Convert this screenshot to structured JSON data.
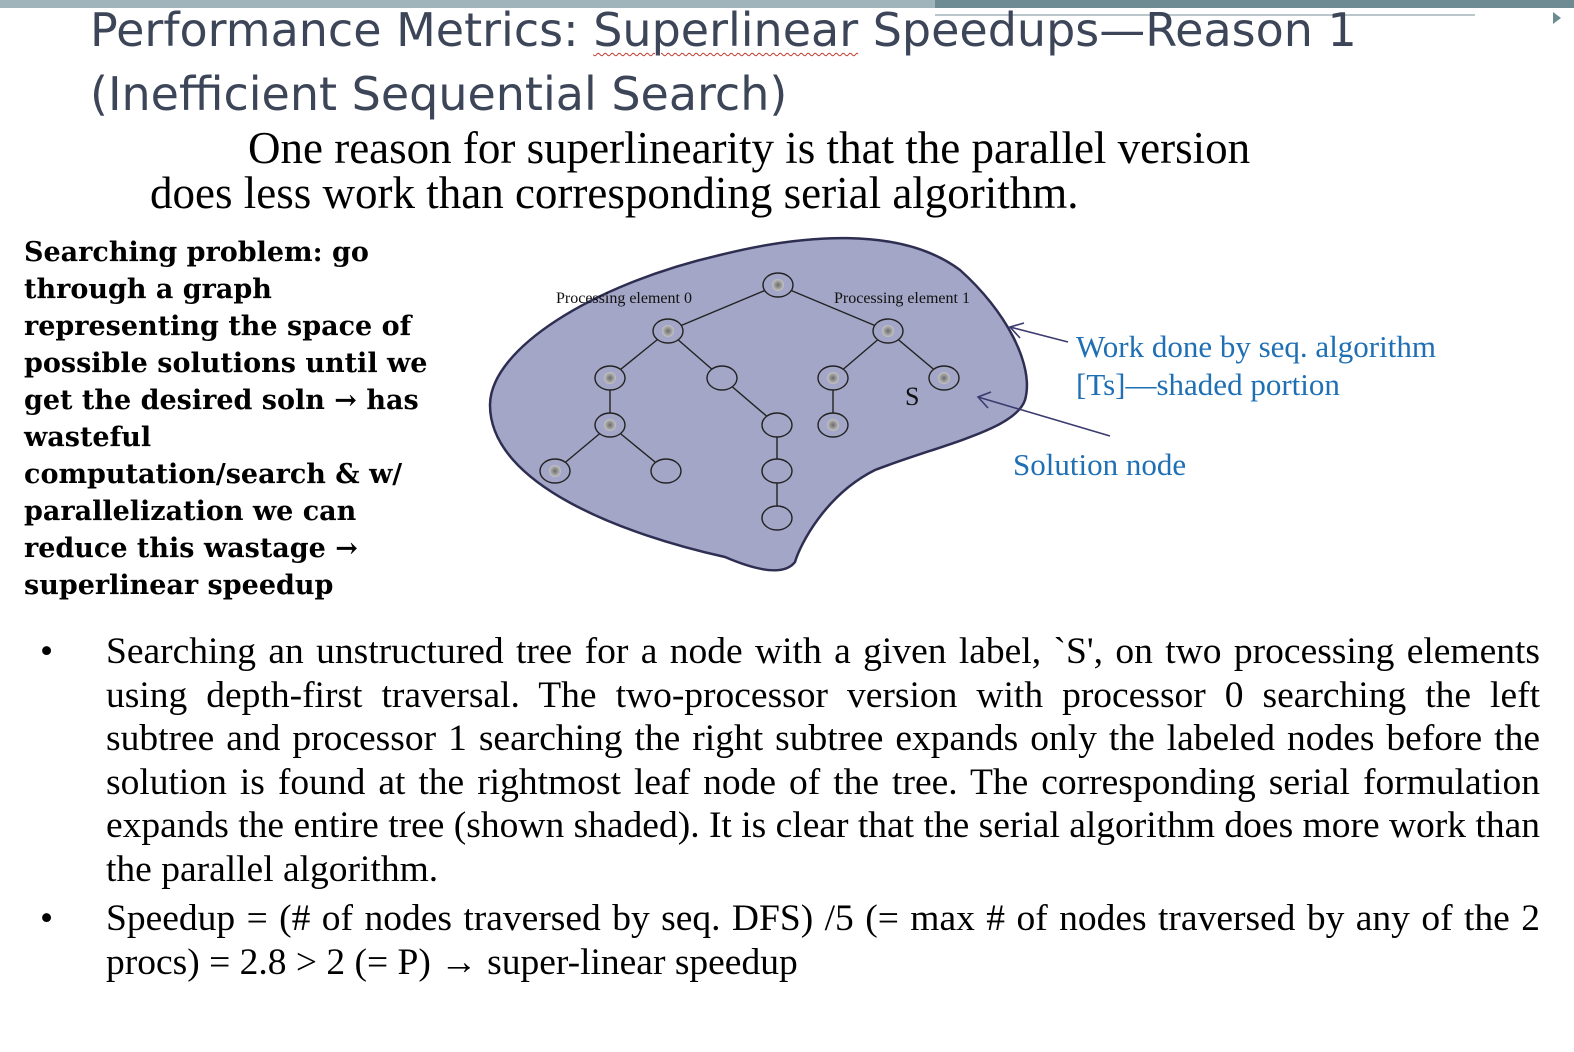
{
  "slide": {
    "title_line1_pre": "Performance Metrics: ",
    "title_line1_sq": "Superlinear",
    "title_line1_post": " Speedups—Reason 1",
    "title_line2": "(Inefficient Sequential Search)",
    "intro_line1": "One reason for superlinearity is that the parallel version",
    "intro_line2": "does less work than corresponding serial algorithm.",
    "sidebar_text": "Searching problem: go\nthrough a graph\nrepresenting the space of\npossible solutions until we\nget the desired soln → has\nwasteful\ncomputation/search & w/\nparallelization we can\nreduce this wastage →\nsuperlinear speedup"
  },
  "diagram": {
    "pe0_label": "Processing element 0",
    "pe1_label": "Processing element 1",
    "solution_label": "S",
    "callout_work_line1": "Work done by seq.  algorithm",
    "callout_work_line2": "[Ts]—shaded portion",
    "callout_solution": "Solution node",
    "colors": {
      "region_fill": "#a3a6c6",
      "region_stroke": "#2e2e52",
      "callout": "#1f6fb5",
      "shaded_node": "#9a9a9a"
    }
  },
  "bullets": [
    {
      "marker": "•",
      "text": "Searching an unstructured tree for a node with a given label, `S', on two processing elements using depth-first traversal. The two-processor version with processor 0 searching the left subtree and processor 1 searching the right subtree expands only the labeled nodes before the solution is found at the rightmost leaf node of the tree. The corresponding serial formulation expands the entire tree (shown shaded). It is clear that the serial algorithm does more work than the parallel algorithm."
    },
    {
      "marker": "•",
      "text": "Speedup = (# of nodes traversed by seq. DFS) /5 (= max # of nodes traversed by any of the 2 procs) = 2.8  > 2 (= P) → super-linear speedup"
    }
  ]
}
